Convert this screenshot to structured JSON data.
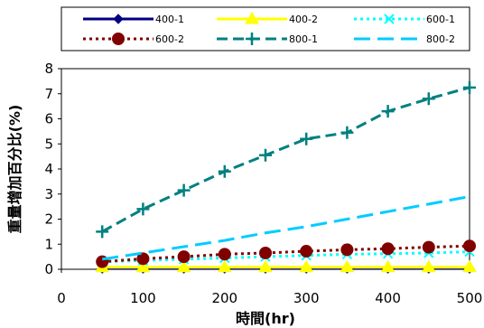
{
  "chart_data": {
    "type": "line",
    "xlabel": "時間(hr)",
    "ylabel": "重量增加百分比(%)",
    "xlim": [
      0,
      500
    ],
    "ylim": [
      0,
      8
    ],
    "xticks": [
      "0",
      "100",
      "200",
      "300",
      "400",
      "500"
    ],
    "yticks": [
      "0",
      "1",
      "2",
      "3",
      "4",
      "5",
      "6",
      "7",
      "8"
    ],
    "yticks_hidden_label_suffix": "%",
    "x": [
      50,
      100,
      150,
      200,
      250,
      300,
      350,
      400,
      450,
      500
    ],
    "series": [
      {
        "name": "400-1",
        "color": "#000080",
        "marker": "diamond",
        "dash": "solid",
        "values": [
          0.03,
          0.03,
          0.03,
          0.03,
          0.03,
          0.03,
          0.03,
          0.03,
          0.03,
          0.03
        ]
      },
      {
        "name": "400-2",
        "color": "#ffff00",
        "marker": "triangle",
        "dash": "solid",
        "values": [
          0.08,
          0.08,
          0.08,
          0.08,
          0.08,
          0.08,
          0.08,
          0.08,
          0.08,
          0.08
        ]
      },
      {
        "name": "600-1",
        "color": "#00ffff",
        "marker": "x",
        "dash": "dotted",
        "values": [
          0.3,
          0.35,
          0.4,
          0.45,
          0.5,
          0.55,
          0.6,
          0.62,
          0.65,
          0.7
        ]
      },
      {
        "name": "600-2",
        "color": "#800000",
        "marker": "circle",
        "dash": "dotted",
        "values": [
          0.3,
          0.42,
          0.5,
          0.6,
          0.65,
          0.72,
          0.78,
          0.82,
          0.88,
          0.93
        ]
      },
      {
        "name": "800-1",
        "color": "#008080",
        "marker": "plus",
        "dash": "dashed",
        "values": [
          1.5,
          2.4,
          3.15,
          3.9,
          4.55,
          5.2,
          5.45,
          6.3,
          6.8,
          7.25
        ]
      },
      {
        "name": "800-2",
        "color": "#00ccff",
        "marker": "none",
        "dash": "longdash",
        "values": [
          0.4,
          0.65,
          0.9,
          1.15,
          1.45,
          1.7,
          2.0,
          2.3,
          2.6,
          2.9
        ]
      }
    ]
  }
}
